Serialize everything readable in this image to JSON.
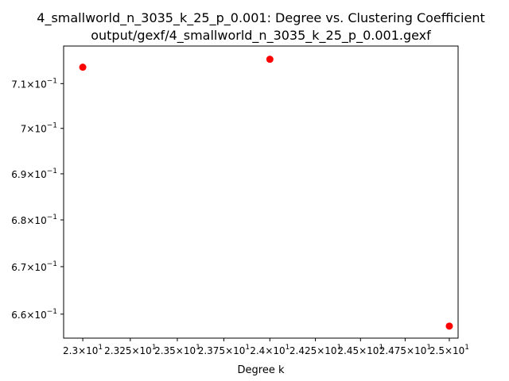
{
  "chart_data": {
    "type": "scatter",
    "title": "4_smallworld_n_3035_k_25_p_0.001: Degree vs. Clustering Coefficient",
    "subtitle": "output/gexf/4_smallworld_n_3035_k_25_p_0.001.gexf",
    "xlabel": "Degree k",
    "ylabel": "",
    "xscale": "log",
    "yscale": "log",
    "grid": false,
    "xlim": [
      22.9,
      25.05
    ],
    "ylim": [
      0.655,
      0.7185
    ],
    "x_ticks": [
      {
        "value": 23.0,
        "mant": "2.3",
        "exp": "1"
      },
      {
        "value": 23.25,
        "mant": "2.325",
        "exp": "1"
      },
      {
        "value": 23.5,
        "mant": "2.35",
        "exp": "1"
      },
      {
        "value": 23.75,
        "mant": "2.375",
        "exp": "1"
      },
      {
        "value": 24.0,
        "mant": "2.4",
        "exp": "1"
      },
      {
        "value": 24.25,
        "mant": "2.425",
        "exp": "1"
      },
      {
        "value": 24.5,
        "mant": "2.45",
        "exp": "1"
      },
      {
        "value": 24.75,
        "mant": "2.475",
        "exp": "1"
      },
      {
        "value": 25.0,
        "mant": "2.5",
        "exp": "1"
      }
    ],
    "y_ticks": [
      {
        "value": 0.71,
        "mant": "7.1",
        "exp": "−1"
      },
      {
        "value": 0.7,
        "mant": "7",
        "exp": "−1"
      },
      {
        "value": 0.69,
        "mant": "6.9",
        "exp": "−1"
      },
      {
        "value": 0.68,
        "mant": "6.8",
        "exp": "−1"
      },
      {
        "value": 0.67,
        "mant": "6.7",
        "exp": "−1"
      },
      {
        "value": 0.66,
        "mant": "6.6",
        "exp": "−1"
      }
    ],
    "series": [
      {
        "color": "#ff0000",
        "points": [
          {
            "x": 23.0,
            "y": 0.7137
          },
          {
            "x": 24.0,
            "y": 0.7155
          },
          {
            "x": 25.0,
            "y": 0.6575
          }
        ]
      }
    ]
  }
}
